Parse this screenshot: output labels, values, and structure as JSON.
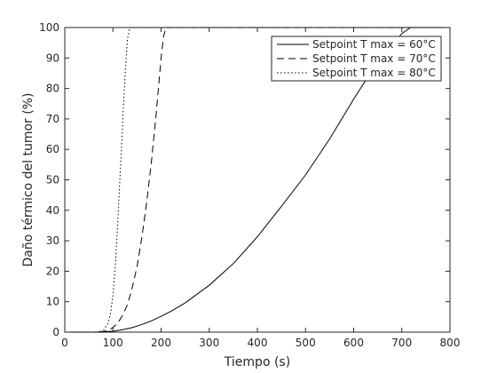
{
  "chart_data": {
    "type": "line",
    "xlabel": "Tiempo (s)",
    "ylabel": "Daño térmico del tumor (%)",
    "xlim": [
      0,
      800
    ],
    "ylim": [
      0,
      100
    ],
    "xticks": [
      "0",
      "100",
      "200",
      "300",
      "400",
      "500",
      "600",
      "700",
      "800"
    ],
    "yticks": [
      "0",
      "10",
      "20",
      "30",
      "40",
      "50",
      "60",
      "70",
      "80",
      "90",
      "100"
    ],
    "grid": false,
    "legend_position": "top-right",
    "series": [
      {
        "name": "Setpoint T max = 60°C",
        "style": "solid",
        "color": "#000000",
        "x": [
          0,
          60,
          80,
          100,
          120,
          140,
          160,
          180,
          200,
          220,
          250,
          300,
          350,
          400,
          450,
          500,
          550,
          600,
          650,
          700,
          718,
          760,
          800
        ],
        "y": [
          0,
          0,
          0.1,
          0.3,
          0.8,
          1.5,
          2.5,
          3.7,
          5.2,
          6.8,
          9.6,
          15.4,
          22.5,
          31.3,
          41.3,
          51.6,
          63.4,
          76.5,
          88.8,
          98.0,
          100,
          100,
          100
        ]
      },
      {
        "name": "Setpoint T max = 70°C",
        "style": "dashed",
        "color": "#000000",
        "x": [
          0,
          60,
          80,
          90,
          100,
          110,
          120,
          130,
          140,
          150,
          160,
          170,
          180,
          190,
          195,
          200,
          205,
          210,
          220,
          400,
          600,
          800
        ],
        "y": [
          0,
          0,
          0.2,
          0.6,
          1.5,
          3.0,
          5.5,
          9.0,
          14.5,
          21.5,
          31.0,
          42.5,
          56.0,
          72.0,
          81.0,
          90.0,
          97.0,
          100,
          100,
          100,
          100,
          100
        ]
      },
      {
        "name": "Setpoint T max = 80°C",
        "style": "dotted",
        "color": "#000000",
        "x": [
          0,
          70,
          80,
          90,
          95,
          100,
          105,
          110,
          115,
          120,
          125,
          130,
          135,
          200,
          400,
          600,
          800
        ],
        "y": [
          0,
          0,
          0.5,
          3.0,
          6.0,
          12.0,
          22.0,
          36.0,
          52.0,
          68.0,
          84.0,
          96.0,
          100,
          100,
          100,
          100,
          100
        ]
      }
    ]
  }
}
